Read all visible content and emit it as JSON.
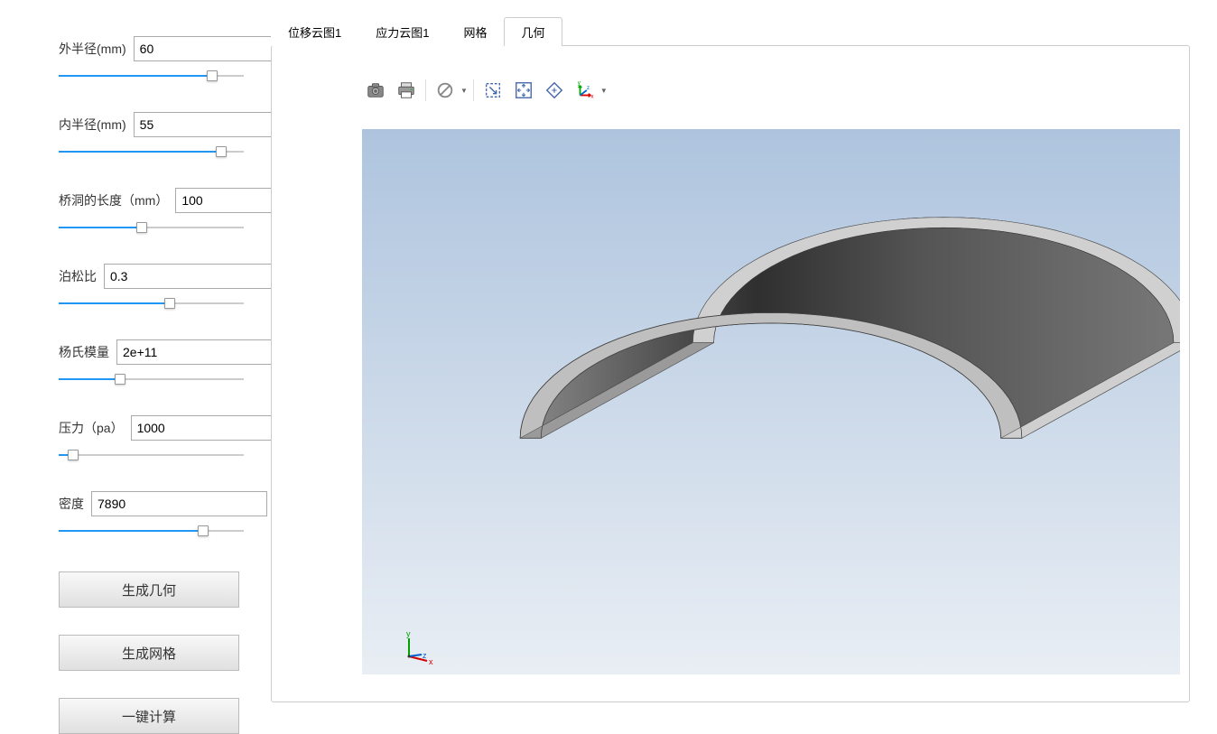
{
  "params": [
    {
      "key": "outer_radius",
      "label": "外半径(mm)",
      "value": "60",
      "slider_pct": 83
    },
    {
      "key": "inner_radius",
      "label": "内半径(mm)",
      "value": "55",
      "slider_pct": 88
    },
    {
      "key": "bridge_length",
      "label": "桥洞的长度（mm）",
      "value": "100",
      "slider_pct": 45
    },
    {
      "key": "poisson",
      "label": "泊松比",
      "value": "0.3",
      "slider_pct": 60
    },
    {
      "key": "youngs",
      "label": "杨氏模量",
      "value": "2e+11",
      "slider_pct": 33
    },
    {
      "key": "pressure",
      "label": "压力（pa）",
      "value": "1000",
      "slider_pct": 8
    },
    {
      "key": "density",
      "label": "密度",
      "value": "7890",
      "slider_pct": 78
    }
  ],
  "buttons": {
    "gen_geometry": "生成几何",
    "gen_mesh": "生成网格",
    "compute": "一键计算"
  },
  "tabs": [
    {
      "key": "disp",
      "label": "位移云图1",
      "active": false
    },
    {
      "key": "stress",
      "label": "应力云图1",
      "active": false
    },
    {
      "key": "mesh",
      "label": "网格",
      "active": false
    },
    {
      "key": "geom",
      "label": "几何",
      "active": true
    }
  ],
  "toolbar": [
    {
      "name": "screenshot-icon",
      "type": "camera"
    },
    {
      "name": "print-icon",
      "type": "printer"
    },
    {
      "name": "separator"
    },
    {
      "name": "reset-icon",
      "type": "noentry",
      "dropdown": true
    },
    {
      "name": "separator"
    },
    {
      "name": "zoom-box-icon",
      "type": "zoombox"
    },
    {
      "name": "zoom-extents-icon",
      "type": "zoomextents"
    },
    {
      "name": "zoom-selection-icon",
      "type": "zoomsel"
    },
    {
      "name": "view-axis-icon",
      "type": "axisview",
      "dropdown": true
    }
  ],
  "viewport": {
    "bg_gradient_top": "#aec4de",
    "bg_gradient_bottom": "#e9eef4",
    "model_color_front": "#4a4a4a",
    "model_color_light": "#d0d0d0",
    "model_color_dark": "#3a3a3a",
    "axis_colors": {
      "x": "#d00000",
      "y": "#00a000",
      "z": "#0060d0"
    },
    "axis_labels": {
      "x": "x",
      "y": "y",
      "z": "z"
    }
  }
}
